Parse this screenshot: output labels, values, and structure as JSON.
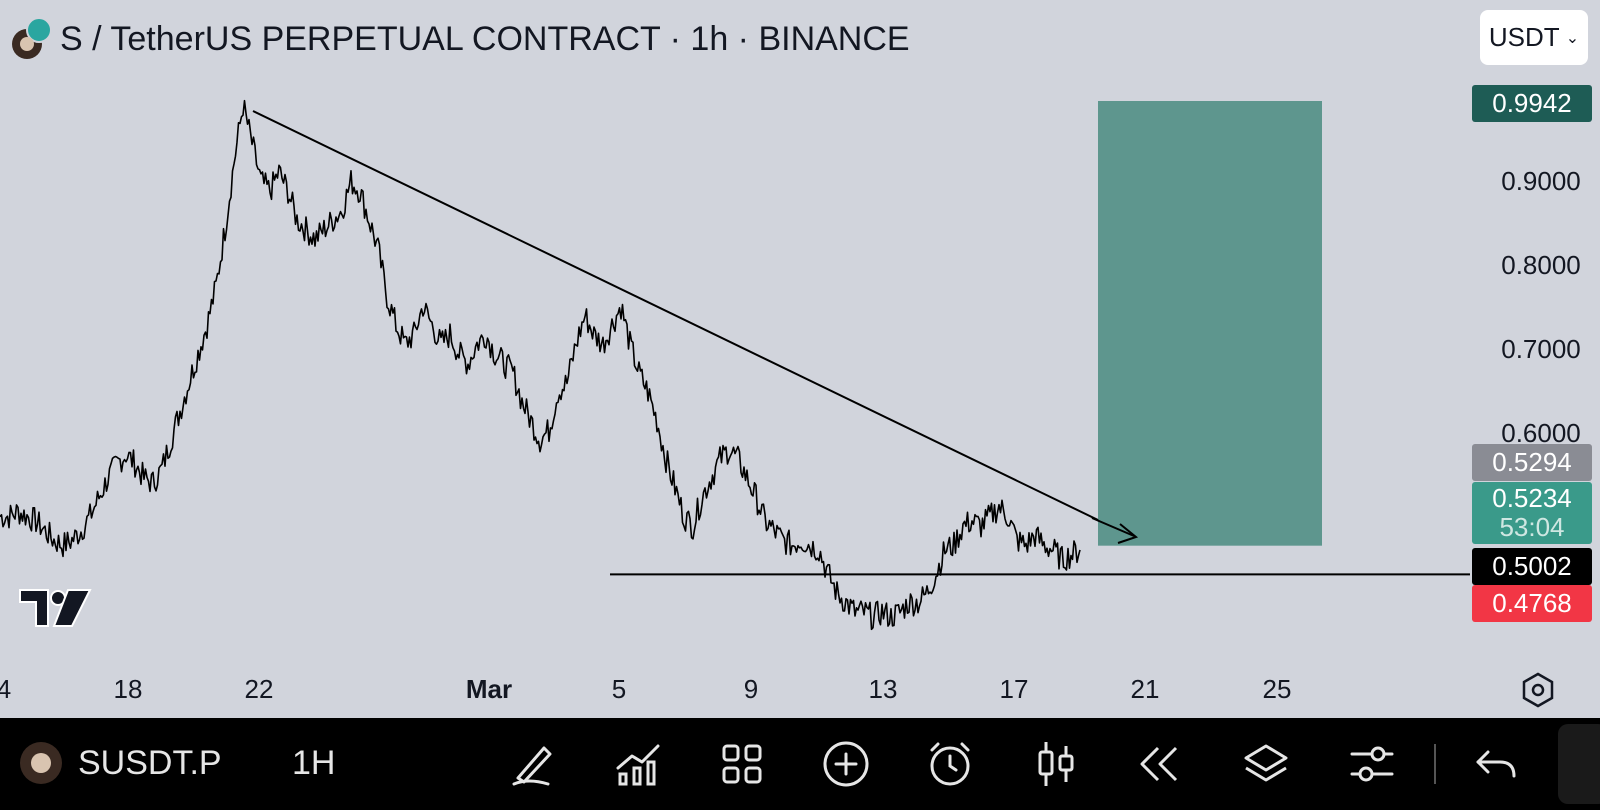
{
  "header": {
    "title": "S / TetherUS PERPETUAL CONTRACT · 1h · BINANCE",
    "currency": "USDT"
  },
  "price_axis": {
    "ticks": [
      "0.9000",
      "0.8000",
      "0.7000",
      "0.6000"
    ],
    "tags": [
      {
        "label": "0.9942",
        "color": "#1e5c55"
      },
      {
        "label": "0.5294",
        "color": "#8a8c94"
      },
      {
        "label": "0.5234",
        "sub": "53:04",
        "color": "#3a9a8a"
      },
      {
        "label": "0.5002",
        "color": "#000000"
      },
      {
        "label": "0.4768",
        "color": "#f23645"
      }
    ]
  },
  "time_axis": {
    "labels": [
      "4",
      "18",
      "22",
      "Mar",
      "5",
      "9",
      "13",
      "17",
      "21",
      "25"
    ]
  },
  "toolbar": {
    "symbol": "SUSDT.P",
    "interval": "1H",
    "icons": [
      "draw-icon",
      "indicators-icon",
      "layout-grid-icon",
      "add-icon",
      "alert-icon",
      "candles-icon",
      "replay-icon",
      "layers-icon",
      "settings-sliders-icon",
      "undo-icon"
    ]
  },
  "colors": {
    "background": "#d1d4dc",
    "target_zone": "#5e968e",
    "stop_zone": "#dba7ae",
    "price_line": "#000000"
  },
  "chart_data": {
    "type": "line",
    "title": "S / TetherUS PERPETUAL CONTRACT · 1h · BINANCE",
    "xlabel": "",
    "ylabel": "",
    "ylim": [
      0.4,
      1.02
    ],
    "x_ticks": [
      "4",
      "18",
      "22",
      "Mar",
      "5",
      "9",
      "13",
      "17",
      "21",
      "25"
    ],
    "y_ticks": [
      0.9,
      0.8,
      0.7,
      0.6
    ],
    "series": [
      {
        "values": [
          0.56,
          0.56,
          0.565,
          0.56,
          0.555,
          0.545,
          0.535,
          0.53,
          0.535,
          0.545,
          0.56,
          0.58,
          0.6,
          0.615,
          0.625,
          0.615,
          0.6,
          0.595,
          0.61,
          0.64,
          0.67,
          0.7,
          0.73,
          0.76,
          0.8,
          0.86,
          0.93,
          0.99,
          0.95,
          0.91,
          0.9,
          0.92,
          0.9,
          0.87,
          0.86,
          0.85,
          0.86,
          0.87,
          0.88,
          0.91,
          0.9,
          0.87,
          0.84,
          0.79,
          0.76,
          0.74,
          0.75,
          0.78,
          0.76,
          0.74,
          0.75,
          0.73,
          0.72,
          0.74,
          0.75,
          0.73,
          0.72,
          0.71,
          0.68,
          0.66,
          0.64,
          0.65,
          0.69,
          0.7,
          0.74,
          0.77,
          0.75,
          0.74,
          0.76,
          0.78,
          0.74,
          0.71,
          0.69,
          0.66,
          0.62,
          0.59,
          0.56,
          0.55,
          0.58,
          0.6,
          0.62,
          0.63,
          0.62,
          0.6,
          0.58,
          0.555,
          0.545,
          0.535,
          0.53,
          0.535,
          0.53,
          0.525,
          0.5,
          0.48,
          0.47,
          0.46,
          0.46,
          0.455,
          0.46,
          0.455,
          0.46,
          0.47,
          0.47,
          0.48,
          0.5,
          0.525,
          0.53,
          0.55,
          0.555,
          0.55,
          0.56,
          0.57,
          0.56,
          0.535,
          0.53,
          0.54,
          0.53,
          0.525,
          0.515,
          0.52,
          0.525
        ]
      }
    ],
    "annotations": {
      "trendline": {
        "from_index": 27,
        "from_price": 0.99,
        "to_index": 128,
        "to_price": 0.525
      },
      "horizontal_line": {
        "price": 0.5234
      },
      "long_position": {
        "entry": 0.5294,
        "target": 0.9942,
        "stop": 0.4768
      }
    }
  }
}
